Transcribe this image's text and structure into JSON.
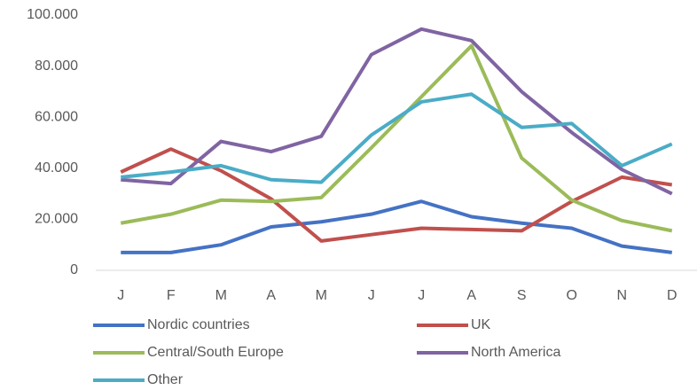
{
  "chart_data": {
    "type": "line",
    "categories": [
      "J",
      "F",
      "M",
      "A",
      "M",
      "J",
      "J",
      "A",
      "S",
      "O",
      "N",
      "D"
    ],
    "series": [
      {
        "name": "Nordic countries",
        "color": "#4472c4",
        "values": [
          7000,
          7000,
          10000,
          17000,
          19000,
          22000,
          27000,
          21000,
          18500,
          16500,
          9500,
          7000
        ]
      },
      {
        "name": "UK",
        "color": "#c0504d",
        "values": [
          38500,
          47500,
          39000,
          28000,
          11500,
          14000,
          16500,
          16000,
          15500,
          27000,
          36500,
          33500
        ]
      },
      {
        "name": "Central/South Europe",
        "color": "#9bbb59",
        "values": [
          18500,
          22000,
          27500,
          27000,
          28500,
          48000,
          68000,
          88000,
          44000,
          27500,
          19500,
          15500
        ]
      },
      {
        "name": "North America",
        "color": "#8064a2",
        "values": [
          35500,
          34000,
          50500,
          46500,
          52500,
          84500,
          94500,
          90000,
          70000,
          54000,
          39500,
          30000
        ]
      },
      {
        "name": "Other",
        "color": "#4bacc6",
        "values": [
          36500,
          38500,
          41000,
          35500,
          34500,
          53000,
          66000,
          69000,
          56000,
          57500,
          41000,
          49500
        ]
      }
    ],
    "ylim": [
      0,
      100000
    ],
    "yticks": [
      0,
      {
        "value": 20000,
        "label": "20.000"
      },
      {
        "value": 40000,
        "label": "40.000"
      },
      {
        "value": 60000,
        "label": "60.000"
      },
      {
        "value": 80000,
        "label": "80.000"
      },
      {
        "value": 100000,
        "label": "100.000"
      }
    ],
    "grid": false,
    "legend": "bottom"
  }
}
